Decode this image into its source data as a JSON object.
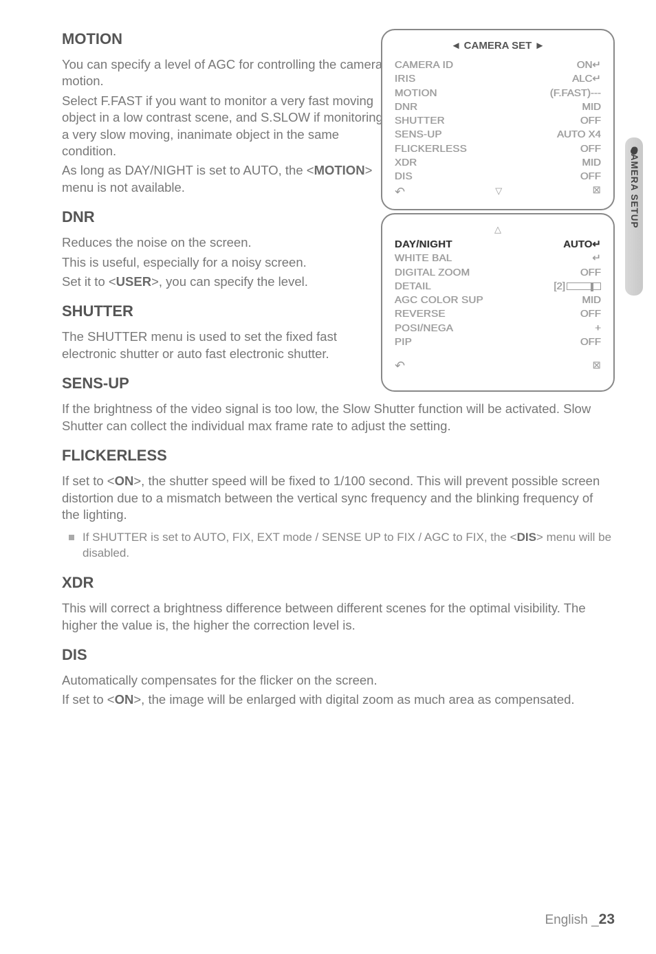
{
  "sections": {
    "motion": {
      "title": "MOTION",
      "body1": "You can specify a level of AGC for controlling the camera motion.",
      "body2": "Select F.FAST if you want to monitor a very fast moving object in a low contrast scene, and S.SLOW if monitoring a very slow moving, inanimate object in the same condition.",
      "body3a": "As long as DAY/NIGHT is set to AUTO, the <",
      "body3b": "MOTION",
      "body3c": "> menu is not available."
    },
    "dnr": {
      "title": "DNR",
      "body1": "Reduces the noise on the screen.",
      "body2": "This is useful, especially for a noisy screen.",
      "body3a": "Set it to <",
      "body3b": "USER",
      "body3c": ">, you can specify the level."
    },
    "shutter": {
      "title": "SHUTTER",
      "body": "The SHUTTER menu is used to set the fixed fast electronic shutter or auto fast electronic shutter."
    },
    "sensup": {
      "title": "SENS-UP",
      "body": "If the brightness of the video signal is too low, the Slow Shutter function will be activated. Slow Shutter can collect the individual max frame rate to adjust the setting."
    },
    "flickerless": {
      "title": "FLICKERLESS",
      "body1a": "If set to <",
      "body1b": "ON",
      "body1c": ">, the shutter speed will be fixed to 1/100 second. This will prevent possible screen distortion due to a mismatch between the vertical sync frequency and the blinking frequency of the lighting.",
      "bullet_a": "If SHUTTER is set to AUTO, FIX, EXT mode / SENSE UP to FIX / AGC to FIX, the  <",
      "bullet_b": "DIS",
      "bullet_c": "> menu will be disabled."
    },
    "xdr": {
      "title": "XDR",
      "body": "This will correct a brightness difference between different scenes for the optimal visibility. The higher the value is, the higher the correction level is."
    },
    "dis": {
      "title": "DIS",
      "body1": "Automatically compensates for the flicker on the screen.",
      "body2a": "If set to <",
      "body2b": "ON",
      "body2c": ">, the image will be enlarged with digital zoom as much area as compensated."
    }
  },
  "osd1": {
    "title": "◄ CAMERA SET ►",
    "rows": [
      {
        "k": "CAMERA ID",
        "v": "ON↵"
      },
      {
        "k": "IRIS",
        "v": "ALC↵"
      },
      {
        "k": "MOTION",
        "v": "(F.FAST)---"
      },
      {
        "k": "DNR",
        "v": "MID"
      },
      {
        "k": "SHUTTER",
        "v": "OFF"
      },
      {
        "k": "SENS-UP",
        "v": "AUTO X4"
      },
      {
        "k": "FLICKERLESS",
        "v": "OFF"
      },
      {
        "k": "XDR",
        "v": "MID"
      },
      {
        "k": "DIS",
        "v": "OFF"
      }
    ],
    "back": "↶",
    "x": "⊠"
  },
  "osd2": {
    "rows": [
      {
        "k": "DAY/NIGHT",
        "v": "AUTO↵",
        "highlight": true
      },
      {
        "k": "WHITE BAL",
        "v": "↵"
      },
      {
        "k": "DIGITAL ZOOM",
        "v": "OFF"
      },
      {
        "k": "DETAIL",
        "v": "[2]",
        "slider": true
      },
      {
        "k": "AGC COLOR SUP",
        "v": "MID"
      },
      {
        "k": "REVERSE",
        "v": "OFF"
      },
      {
        "k": "POSI/NEGA",
        "v": "+"
      },
      {
        "k": "PIP",
        "v": "OFF"
      }
    ],
    "back": "↶",
    "x": "⊠"
  },
  "sidetab": "CAMERA SETUP",
  "footer": {
    "lang": "English _",
    "page": "23"
  }
}
